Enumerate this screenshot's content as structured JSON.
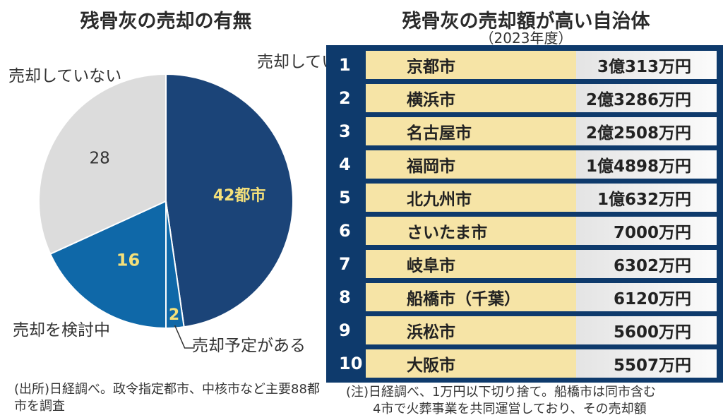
{
  "pie_title": "残骨灰の売却の有無",
  "pie_source": "(出所)日経調べ。政令指定都市、中核市など主要88都市を調査",
  "table_title": "残骨灰の売却額が高い自治体",
  "table_subtitle": "（2023年度）",
  "table_note_line1": "(注)日経調べ、1万円以下切り捨て。船橋市は同市含む",
  "table_note_line2": "4市で火葬事業を共同運営しており、その売却額",
  "colors": {
    "sold": "#1b4478",
    "planned": "#0f68a8",
    "considering": "#0f68a8",
    "not_sold": "#dcdcdc",
    "value_label": "#f4e07a",
    "panel": "#0e3a6c",
    "city_cell": "#f6e4a6"
  },
  "chart_data": [
    {
      "type": "pie",
      "title": "残骨灰の売却の有無",
      "slices": [
        {
          "label": "売却している",
          "value": 42,
          "value_label": "42都市",
          "color": "#1b4478"
        },
        {
          "label": "売却予定がある",
          "value": 2,
          "value_label": "2",
          "color": "#0f68a8"
        },
        {
          "label": "売却を検討中",
          "value": 16,
          "value_label": "16",
          "color": "#0f68a8"
        },
        {
          "label": "売却していない",
          "value": 28,
          "value_label": "28",
          "color": "#dcdcdc"
        }
      ]
    },
    {
      "type": "table",
      "title": "残骨灰の売却額が高い自治体",
      "subtitle": "（2023年度）",
      "rows": [
        {
          "rank": "1",
          "city": "京都市",
          "amount": "3億313万円"
        },
        {
          "rank": "2",
          "city": "横浜市",
          "amount": "2億3286万円"
        },
        {
          "rank": "3",
          "city": "名古屋市",
          "amount": "2億2508万円"
        },
        {
          "rank": "4",
          "city": "福岡市",
          "amount": "1億4898万円"
        },
        {
          "rank": "5",
          "city": "北九州市",
          "amount": "1億632万円"
        },
        {
          "rank": "6",
          "city": "さいたま市",
          "amount": "7000万円"
        },
        {
          "rank": "7",
          "city": "岐阜市",
          "amount": "6302万円"
        },
        {
          "rank": "8",
          "city": "船橋市（千葉）",
          "amount": "6120万円"
        },
        {
          "rank": "9",
          "city": "浜松市",
          "amount": "5600万円"
        },
        {
          "rank": "10",
          "city": "大阪市",
          "amount": "5507万円"
        }
      ]
    }
  ]
}
